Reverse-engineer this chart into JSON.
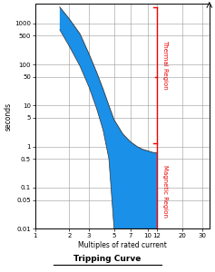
{
  "title": "Tripping Curve",
  "xlabel": "Multiples of rated current",
  "ylabel": "seconds",
  "xlim": [
    1,
    35
  ],
  "ylim": [
    0.01,
    3000
  ],
  "x_ticks": [
    1,
    2,
    3,
    5,
    7,
    10,
    12,
    20,
    30
  ],
  "x_tick_labels": [
    "1",
    "2",
    "3",
    "5",
    "7",
    "10",
    "12",
    "20",
    "30"
  ],
  "y_ticks": [
    0.01,
    0.05,
    0.1,
    0.5,
    1,
    5,
    10,
    50,
    100,
    500,
    1000
  ],
  "y_tick_labels": [
    "0.01",
    "0.05",
    "0.1",
    "0.5",
    "1",
    "5",
    "10",
    "50",
    "100",
    "500",
    "1000"
  ],
  "background_color": "#ffffff",
  "grid_color": "#999999",
  "fill_color": "#1a90e8",
  "red_color": "#ee0000",
  "thermal_label": "Thermal Region",
  "magnetic_label": "Magnetic Region",
  "red_line_x": 12,
  "upper_x": [
    1.65,
    2.0,
    2.5,
    3.0,
    3.5,
    4.0,
    4.5,
    5.0,
    6.0,
    7.0,
    8.0,
    9.0,
    10.0,
    11.0,
    12.0
  ],
  "upper_y": [
    2500,
    1300,
    550,
    180,
    65,
    25,
    10,
    4.5,
    2.0,
    1.3,
    1.0,
    0.85,
    0.78,
    0.72,
    0.7
  ],
  "lower_x": [
    1.65,
    2.0,
    2.5,
    3.0,
    3.5,
    4.0,
    4.5,
    5.0,
    6.0,
    7.0,
    8.0,
    9.0,
    10.0,
    11.0,
    12.0
  ],
  "lower_y": [
    700,
    280,
    90,
    28,
    8.5,
    2.5,
    0.5,
    0.01,
    0.01,
    0.01,
    0.01,
    0.01,
    0.01,
    0.01,
    0.01
  ],
  "thermal_tick_y": 50,
  "magnetic_tick_y": 1.2,
  "top_bracket_y": 2500
}
